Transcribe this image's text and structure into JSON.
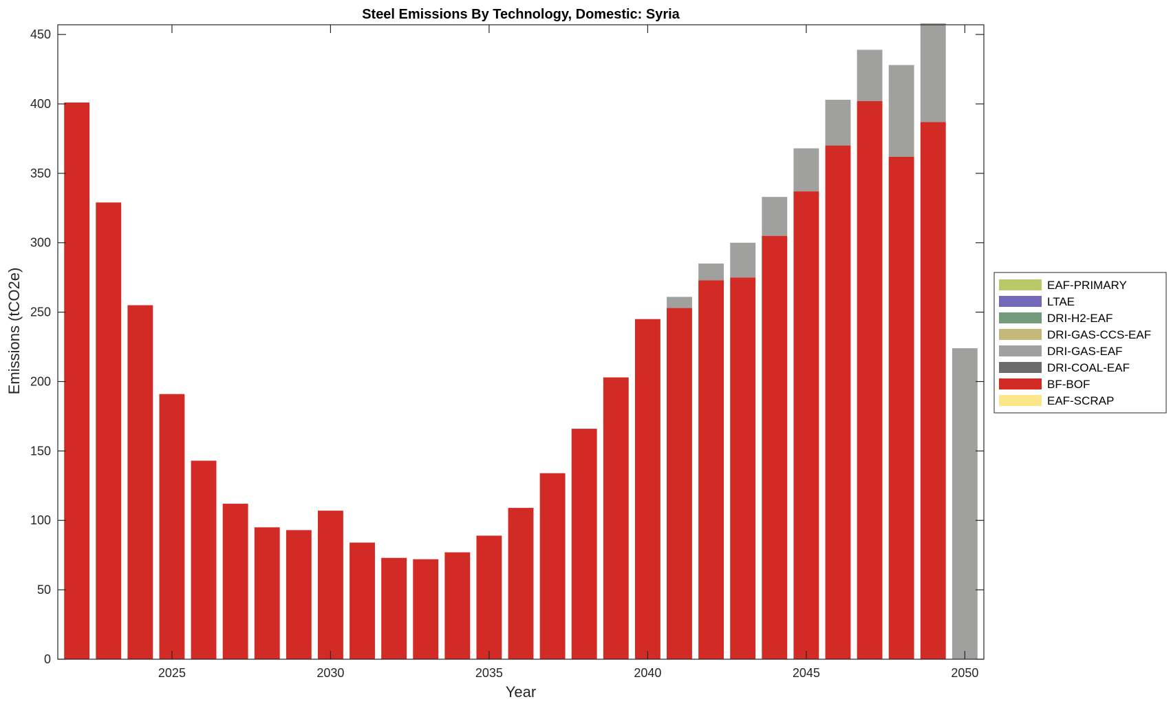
{
  "chart_data": {
    "type": "bar",
    "stacked": true,
    "title": "Steel Emissions By Technology, Domestic: Syria",
    "xlabel": "Year",
    "ylabel": "Emissions (tCO2e)",
    "ylim": [
      0,
      457
    ],
    "xlim": [
      2021.4,
      2050.6
    ],
    "yticks": [
      0,
      50,
      100,
      150,
      200,
      250,
      300,
      350,
      400,
      450
    ],
    "xticks": [
      2025,
      2030,
      2035,
      2040,
      2045,
      2050
    ],
    "grid": false,
    "legend_position": "right",
    "x": [
      2022,
      2023,
      2024,
      2025,
      2026,
      2027,
      2028,
      2029,
      2030,
      2031,
      2032,
      2033,
      2034,
      2035,
      2036,
      2037,
      2038,
      2039,
      2040,
      2041,
      2042,
      2043,
      2044,
      2045,
      2046,
      2047,
      2048,
      2049,
      2050
    ],
    "series": [
      {
        "name": "EAF-SCRAP",
        "color": "#fde68a",
        "values": [
          0,
          0,
          0,
          0,
          0,
          0,
          0,
          0,
          0,
          0,
          0,
          0,
          0,
          0,
          0,
          0,
          0,
          0,
          0,
          0,
          0,
          0,
          0,
          0,
          0,
          0,
          0,
          0,
          0
        ]
      },
      {
        "name": "BF-BOF",
        "color": "#d22b25",
        "values": [
          401,
          329,
          255,
          191,
          143,
          112,
          95,
          93,
          107,
          84,
          73,
          72,
          77,
          89,
          109,
          134,
          166,
          203,
          245,
          253,
          273,
          275,
          305,
          337,
          370,
          402,
          362,
          387,
          0
        ]
      },
      {
        "name": "DRI-COAL-EAF",
        "color": "#6b6b6b",
        "values": [
          0,
          0,
          0,
          0,
          0,
          0,
          0,
          0,
          0,
          0,
          0,
          0,
          0,
          0,
          0,
          0,
          0,
          0,
          0,
          0,
          0,
          0,
          0,
          0,
          0,
          0,
          0,
          0,
          0
        ]
      },
      {
        "name": "DRI-GAS-EAF",
        "color": "#a0a09e",
        "values": [
          0,
          0,
          0,
          0,
          0,
          0,
          0,
          0,
          0,
          0,
          0,
          0,
          0,
          0,
          0,
          0,
          0,
          0,
          0,
          8,
          12,
          25,
          28,
          31,
          33,
          37,
          66,
          71,
          224
        ]
      },
      {
        "name": "DRI-GAS-CCS-EAF",
        "color": "#c4b97a",
        "values": [
          0,
          0,
          0,
          0,
          0,
          0,
          0,
          0,
          0,
          0,
          0,
          0,
          0,
          0,
          0,
          0,
          0,
          0,
          0,
          0,
          0,
          0,
          0,
          0,
          0,
          0,
          0,
          0,
          0
        ]
      },
      {
        "name": "DRI-H2-EAF",
        "color": "#739a7a",
        "values": [
          0,
          0,
          0,
          0,
          0,
          0,
          0,
          0,
          0,
          0,
          0,
          0,
          0,
          0,
          0,
          0,
          0,
          0,
          0,
          0,
          0,
          0,
          0,
          0,
          0,
          0,
          0,
          0,
          0
        ]
      },
      {
        "name": "LTAE",
        "color": "#7468b8",
        "values": [
          0,
          0,
          0,
          0,
          0,
          0,
          0,
          0,
          0,
          0,
          0,
          0,
          0,
          0,
          0,
          0,
          0,
          0,
          0,
          0,
          0,
          0,
          0,
          0,
          0,
          0,
          0,
          0,
          0
        ]
      },
      {
        "name": "EAF-PRIMARY",
        "color": "#b8c96a",
        "values": [
          0,
          0,
          0,
          0,
          0,
          0,
          0,
          0,
          0,
          0,
          0,
          0,
          0,
          0,
          0,
          0,
          0,
          0,
          0,
          0,
          0,
          0,
          0,
          0,
          0,
          0,
          0,
          0,
          0
        ]
      }
    ],
    "legend_order": [
      "EAF-PRIMARY",
      "LTAE",
      "DRI-H2-EAF",
      "DRI-GAS-CCS-EAF",
      "DRI-GAS-EAF",
      "DRI-COAL-EAF",
      "BF-BOF",
      "EAF-SCRAP"
    ]
  }
}
